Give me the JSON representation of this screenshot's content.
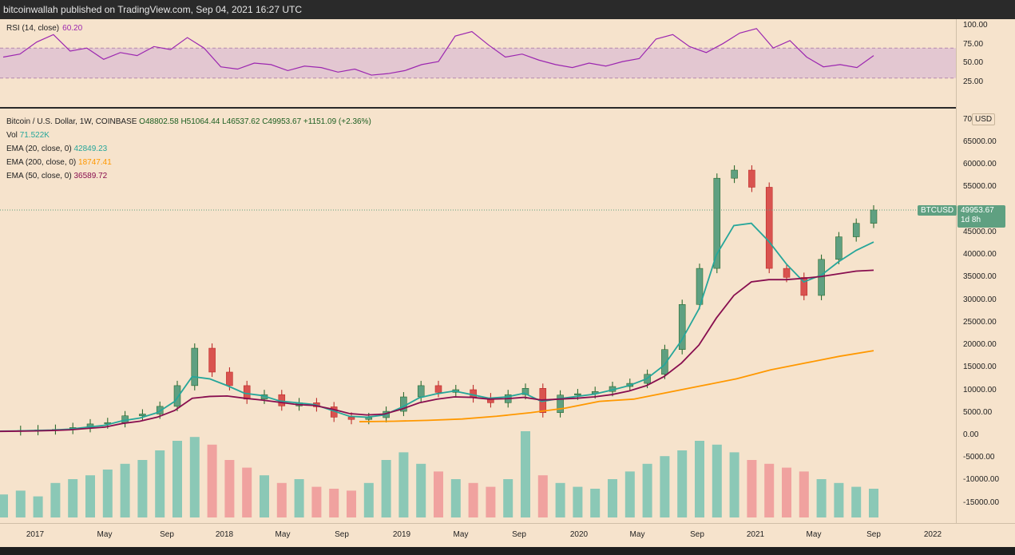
{
  "header": {
    "published": "bitcoinwallah published on TradingView.com, Sep 04, 2021 16:27 UTC"
  },
  "rsi": {
    "title": "RSI (14, close)",
    "value": "60.20",
    "color": "#9c27b0",
    "band_color": "#d7b4d3"
  },
  "main": {
    "title": "Bitcoin / U.S. Dollar, 1W, COINBASE",
    "ohlc": "O48802.58 H51064.44 L46537.62 C49953.67 +1151.09 (+2.36%)",
    "vol_label": "Vol",
    "vol_value": "71.522K",
    "ema20_label": "EMA (20, close, 0)",
    "ema20_value": "42849.23",
    "ema20_color": "#26a69a",
    "ema200_label": "EMA (200, close, 0)",
    "ema200_value": "18747.41",
    "ema200_color": "#ff9800",
    "ema50_label": "EMA (50, close, 0)",
    "ema50_value": "36589.72",
    "ema50_color": "#880e4f"
  },
  "axis": {
    "currency": "USD",
    "btc_tag": "BTCUSD",
    "last_price": "49953.67",
    "countdown": "1d 8h"
  },
  "chart_data": {
    "type": "line",
    "rsi_ticks": [
      "100.00",
      "75.00",
      "50.00",
      "25.00"
    ],
    "rsi_band": [
      30,
      70
    ],
    "price_ticks": [
      "70",
      "65000.00",
      "60000.00",
      "55000.00",
      "50000.00",
      "45000.00",
      "40000.00",
      "35000.00",
      "30000.00",
      "25000.00",
      "20000.00",
      "15000.00",
      "10000.00",
      "5000.00",
      "0.00",
      "-5000.00",
      "-10000.00",
      "-15000.00"
    ],
    "x_ticks": [
      "2017",
      "May",
      "Sep",
      "2018",
      "May",
      "Sep",
      "2019",
      "May",
      "Sep",
      "2020",
      "May",
      "Sep",
      "2021",
      "May",
      "Sep",
      "2022"
    ],
    "rsi": [
      58,
      62,
      78,
      88,
      66,
      70,
      55,
      64,
      60,
      72,
      68,
      84,
      70,
      45,
      42,
      50,
      48,
      40,
      46,
      44,
      38,
      42,
      34,
      36,
      40,
      48,
      52,
      86,
      92,
      74,
      58,
      62,
      54,
      48,
      44,
      50,
      46,
      52,
      56,
      82,
      88,
      72,
      64,
      76,
      90,
      96,
      70,
      80,
      58,
      45,
      48,
      44,
      60
    ],
    "close": [
      1000,
      1050,
      1200,
      1300,
      1700,
      2500,
      2800,
      4300,
      4700,
      6400,
      11000,
      19300,
      14000,
      11000,
      8000,
      9000,
      6500,
      7200,
      6300,
      4000,
      3500,
      3900,
      5300,
      8500,
      11000,
      9500,
      10100,
      8300,
      7200,
      9000,
      10400,
      5000,
      8900,
      9200,
      9700,
      10800,
      11500,
      13500,
      19000,
      29000,
      37000,
      57000,
      58800,
      55000,
      37000,
      35000,
      31000,
      39000,
      44000,
      47000,
      49953
    ],
    "ema20": [
      900,
      950,
      1050,
      1150,
      1350,
      1800,
      2200,
      3200,
      3800,
      5000,
      7500,
      13000,
      12500,
      11000,
      9300,
      8800,
      7600,
      7200,
      6800,
      5500,
      4200,
      4000,
      4500,
      6200,
      8300,
      9200,
      9800,
      9000,
      8200,
      8500,
      9300,
      7500,
      8100,
      8600,
      9100,
      10000,
      11000,
      12500,
      15500,
      21000,
      28000,
      40000,
      46500,
      47000,
      43000,
      38000,
      34000,
      35500,
      38500,
      41000,
      42849
    ],
    "ema200": [
      3000,
      3100,
      3300,
      3600,
      4200,
      5000,
      6000,
      7500,
      8000,
      9500,
      11000,
      12500,
      14500,
      16000,
      17500,
      18747
    ],
    "ema50": [
      850,
      900,
      950,
      1050,
      1200,
      1500,
      1800,
      2600,
      3100,
      4000,
      5500,
      8200,
      8600,
      8700,
      8200,
      7800,
      7300,
      6800,
      6600,
      5800,
      4800,
      4500,
      4700,
      5800,
      7200,
      8000,
      8500,
      8400,
      8000,
      8100,
      8400,
      7800,
      8000,
      8200,
      8500,
      9000,
      9800,
      11000,
      13000,
      16000,
      20000,
      26000,
      31000,
      34000,
      34500,
      34500,
      34800,
      35200,
      35800,
      36400,
      36589
    ],
    "volume": [
      12,
      14,
      11,
      18,
      20,
      22,
      25,
      28,
      30,
      35,
      40,
      42,
      38,
      30,
      26,
      22,
      18,
      20,
      16,
      15,
      14,
      18,
      30,
      34,
      28,
      24,
      20,
      18,
      16,
      20,
      45,
      22,
      18,
      16,
      15,
      20,
      24,
      28,
      32,
      35,
      40,
      38,
      34,
      30,
      28,
      26,
      24,
      20,
      18,
      16,
      15
    ]
  }
}
